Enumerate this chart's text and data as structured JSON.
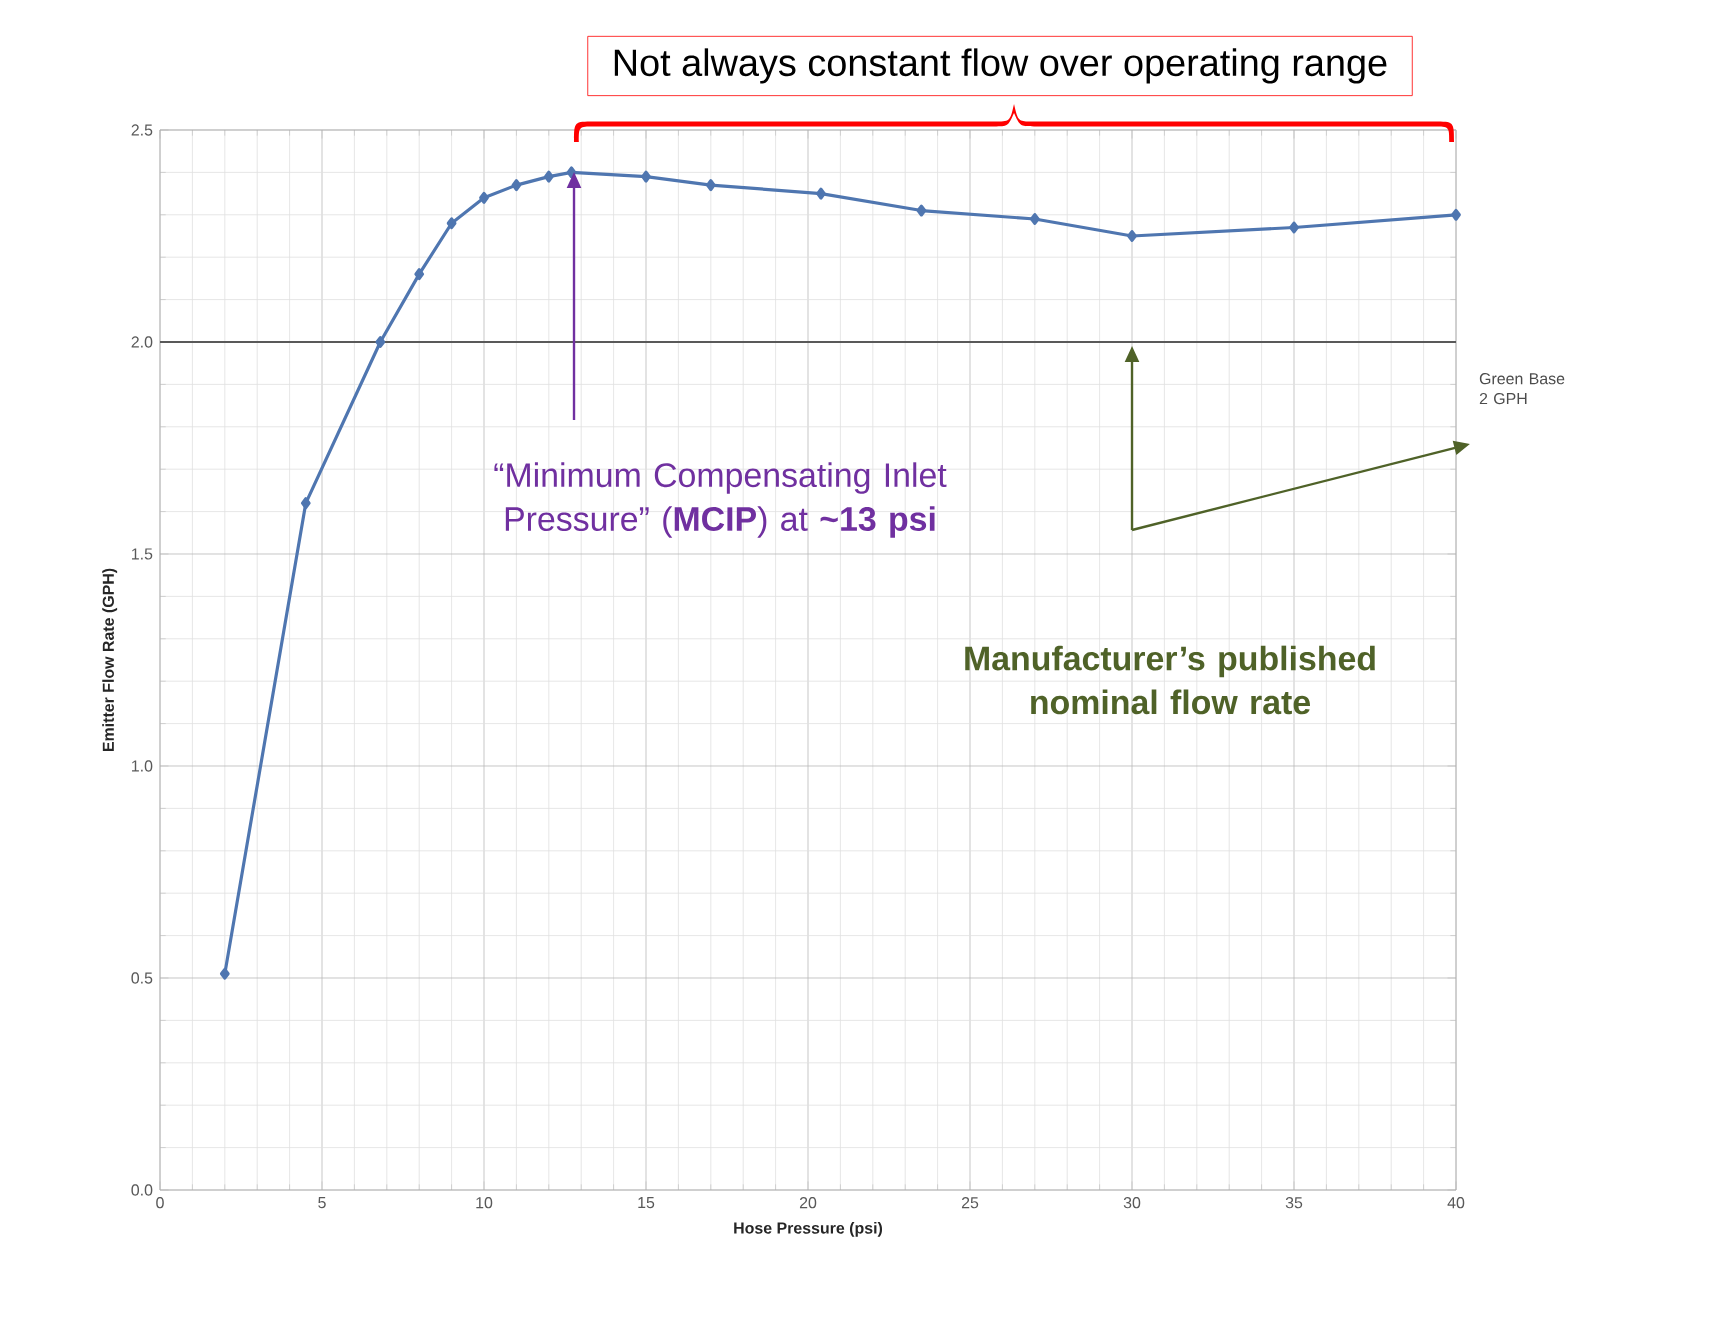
{
  "chart_data": {
    "type": "line",
    "title": "Not always constant flow over operating range",
    "xlabel": "Hose Pressure (psi)",
    "ylabel": "Emitter Flow Rate (GPH)",
    "x": [
      2,
      4.5,
      6.8,
      8,
      9,
      10,
      11,
      12,
      12.7,
      15,
      17,
      20.4,
      23.5,
      27,
      30,
      35,
      40
    ],
    "series": [
      {
        "color": "#4f76b0",
        "values": [
          0.51,
          1.62,
          2.0,
          2.16,
          2.28,
          2.34,
          2.37,
          2.39,
          2.4,
          2.39,
          2.37,
          2.35,
          2.31,
          2.29,
          2.25,
          2.27,
          2.3
        ]
      }
    ],
    "xlim": [
      0,
      40
    ],
    "xticks": [
      0,
      5,
      10,
      15,
      20,
      25,
      30,
      35,
      40
    ],
    "ylim": [
      0,
      2.5
    ],
    "yticks": [
      {
        "value": 0,
        "label": "0.0"
      },
      {
        "value": 0.5,
        "label": "0.5"
      },
      {
        "value": 1,
        "label": "1.0"
      },
      {
        "value": 1.5,
        "label": "1.5"
      },
      {
        "value": 2,
        "label": "2.0"
      },
      {
        "value": 2.5,
        "label": "2.5"
      }
    ],
    "ref_lines": [
      {
        "axis": "y",
        "value": 2,
        "label": "Green Base 2 GPH",
        "color": "#595959"
      }
    ],
    "annotations": [
      "“Minimum Compensating Inlet Pressure” (**MCIP**) at **~13 psi**",
      "Manufacturer’s published nominal flow rate"
    ],
    "grid": true,
    "marker": "diamond",
    "line_style": "solid"
  }
}
